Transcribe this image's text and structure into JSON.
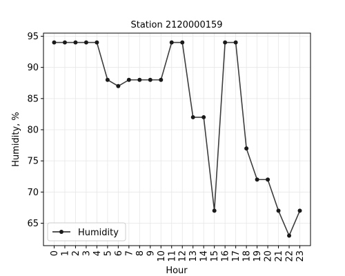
{
  "chart_data": {
    "type": "line",
    "title": "Station 2120000159",
    "xlabel": "Hour",
    "ylabel": "Humidity, %",
    "categories": [
      "0",
      "1",
      "2",
      "3",
      "4",
      "5",
      "6",
      "7",
      "8",
      "9",
      "10",
      "11",
      "12",
      "13",
      "14",
      "15",
      "16",
      "17",
      "18",
      "19",
      "20",
      "21",
      "22",
      "23"
    ],
    "series": [
      {
        "name": "Humidity",
        "color": "#1a1a1a",
        "values": [
          94,
          94,
          94,
          94,
          94,
          88,
          87,
          88,
          88,
          88,
          88,
          94,
          94,
          82,
          82,
          67,
          94,
          94,
          77,
          72,
          72,
          67,
          63,
          67
        ]
      }
    ],
    "xlim": [
      -1,
      24
    ],
    "ylim": [
      61.4,
      95.5
    ],
    "yticks": [
      65,
      70,
      75,
      80,
      85,
      90,
      95
    ],
    "grid": true,
    "legend": "lower-left"
  }
}
